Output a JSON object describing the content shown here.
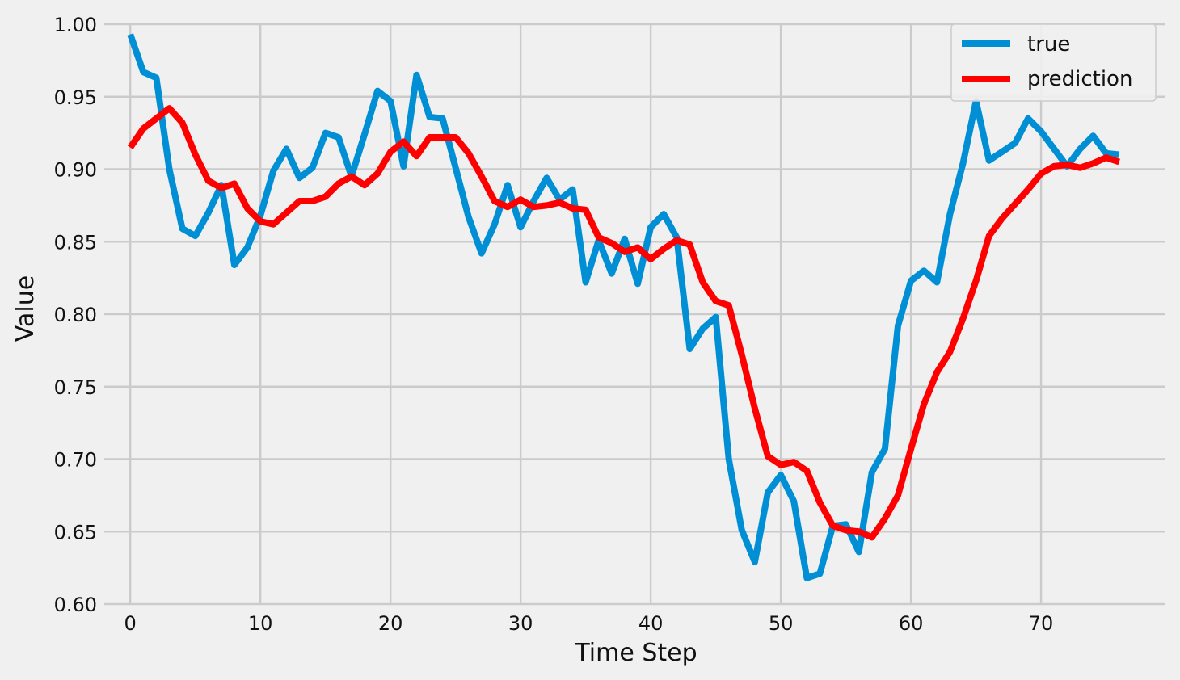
{
  "chart_data": {
    "type": "line",
    "title": "",
    "xlabel": "Time Step",
    "ylabel": "Value",
    "xlim": [
      -2,
      79.5
    ],
    "ylim": [
      0.6,
      1.0
    ],
    "grid": true,
    "legend_position": "top-right",
    "x_ticks": [
      0,
      10,
      20,
      30,
      40,
      50,
      60,
      70
    ],
    "x_tick_labels": [
      "0",
      "10",
      "20",
      "30",
      "40",
      "50",
      "60",
      "70"
    ],
    "y_ticks": [
      0.6,
      0.65,
      0.7,
      0.75,
      0.8,
      0.85,
      0.9,
      0.95,
      1.0
    ],
    "y_tick_labels": [
      "0.60",
      "0.65",
      "0.70",
      "0.75",
      "0.80",
      "0.85",
      "0.90",
      "0.95",
      "1.00"
    ],
    "x": [
      0,
      1,
      2,
      3,
      4,
      5,
      6,
      7,
      8,
      9,
      10,
      11,
      12,
      13,
      14,
      15,
      16,
      17,
      18,
      19,
      20,
      21,
      22,
      23,
      24,
      25,
      26,
      27,
      28,
      29,
      30,
      31,
      32,
      33,
      34,
      35,
      36,
      37,
      38,
      39,
      40,
      41,
      42,
      43,
      44,
      45,
      46,
      47,
      48,
      49,
      50,
      51,
      52,
      53,
      54,
      55,
      56,
      57,
      58,
      59,
      60,
      61,
      62,
      63,
      64,
      65,
      66,
      67,
      68,
      69,
      70,
      71,
      72,
      73,
      74,
      75,
      76
    ],
    "series": [
      {
        "name": "true",
        "color": "#008fd5",
        "values": [
          0.993,
          0.967,
          0.963,
          0.9,
          0.859,
          0.854,
          0.87,
          0.889,
          0.834,
          0.846,
          0.868,
          0.899,
          0.914,
          0.894,
          0.901,
          0.925,
          0.922,
          0.895,
          0.924,
          0.954,
          0.947,
          0.902,
          0.965,
          0.936,
          0.935,
          0.901,
          0.867,
          0.842,
          0.862,
          0.889,
          0.86,
          0.878,
          0.894,
          0.879,
          0.886,
          0.822,
          0.851,
          0.828,
          0.852,
          0.821,
          0.86,
          0.869,
          0.853,
          0.776,
          0.79,
          0.798,
          0.7,
          0.651,
          0.629,
          0.677,
          0.689,
          0.671,
          0.618,
          0.621,
          0.654,
          0.655,
          0.636,
          0.691,
          0.707,
          0.792,
          0.823,
          0.83,
          0.822,
          0.869,
          0.904,
          0.947,
          0.906,
          0.912,
          0.918,
          0.935,
          0.926,
          0.914,
          0.902,
          0.914,
          0.923,
          0.911,
          0.91
        ]
      },
      {
        "name": "prediction",
        "color": "#ff0000",
        "values": [
          0.915,
          0.928,
          0.935,
          0.942,
          0.932,
          0.91,
          0.892,
          0.887,
          0.89,
          0.873,
          0.864,
          0.862,
          0.87,
          0.878,
          0.878,
          0.881,
          0.89,
          0.895,
          0.889,
          0.897,
          0.912,
          0.919,
          0.909,
          0.922,
          0.922,
          0.922,
          0.911,
          0.895,
          0.878,
          0.874,
          0.879,
          0.874,
          0.875,
          0.877,
          0.873,
          0.872,
          0.853,
          0.849,
          0.843,
          0.846,
          0.838,
          0.845,
          0.851,
          0.848,
          0.822,
          0.809,
          0.806,
          0.772,
          0.735,
          0.702,
          0.696,
          0.698,
          0.692,
          0.67,
          0.654,
          0.651,
          0.65,
          0.646,
          0.659,
          0.675,
          0.707,
          0.738,
          0.76,
          0.774,
          0.797,
          0.823,
          0.854,
          0.866,
          0.876,
          0.886,
          0.897,
          0.902,
          0.903,
          0.901,
          0.904,
          0.908,
          0.905
        ]
      }
    ]
  }
}
